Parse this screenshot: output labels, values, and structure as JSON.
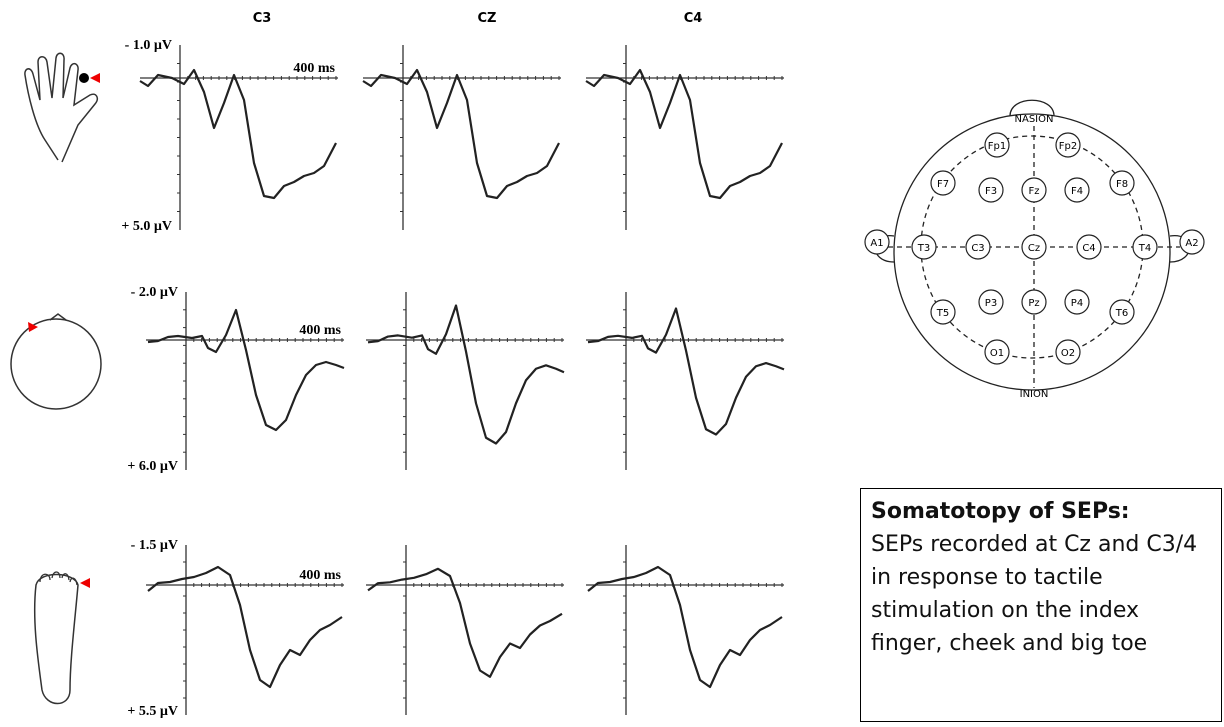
{
  "columns": [
    "C3",
    "CZ",
    "C4"
  ],
  "rows": [
    {
      "top": "- 1.0 µV",
      "bottom": "+ 5.0 µV",
      "time": "400 ms"
    },
    {
      "top": "- 2.0 µV",
      "bottom": "+ 6.0 µV",
      "time": "400 ms"
    },
    {
      "top": "- 1.5 µV",
      "bottom": "+ 5.5 µV",
      "time": "400 ms"
    }
  ],
  "electrode_map": {
    "top": "NASION",
    "bottom": "INION",
    "electrodes": [
      "Fp1",
      "Fp2",
      "F7",
      "F3",
      "Fz",
      "F4",
      "F8",
      "A1",
      "T3",
      "C3",
      "Cz",
      "C4",
      "T4",
      "A2",
      "T5",
      "P3",
      "Pz",
      "P4",
      "T6",
      "O1",
      "O2"
    ]
  },
  "caption": {
    "title": "Somatotopy of SEPs:",
    "text": "SEPs recorded at Cz and C3/4 in response to tactile stimulation on the index finger, cheek and big toe"
  }
}
